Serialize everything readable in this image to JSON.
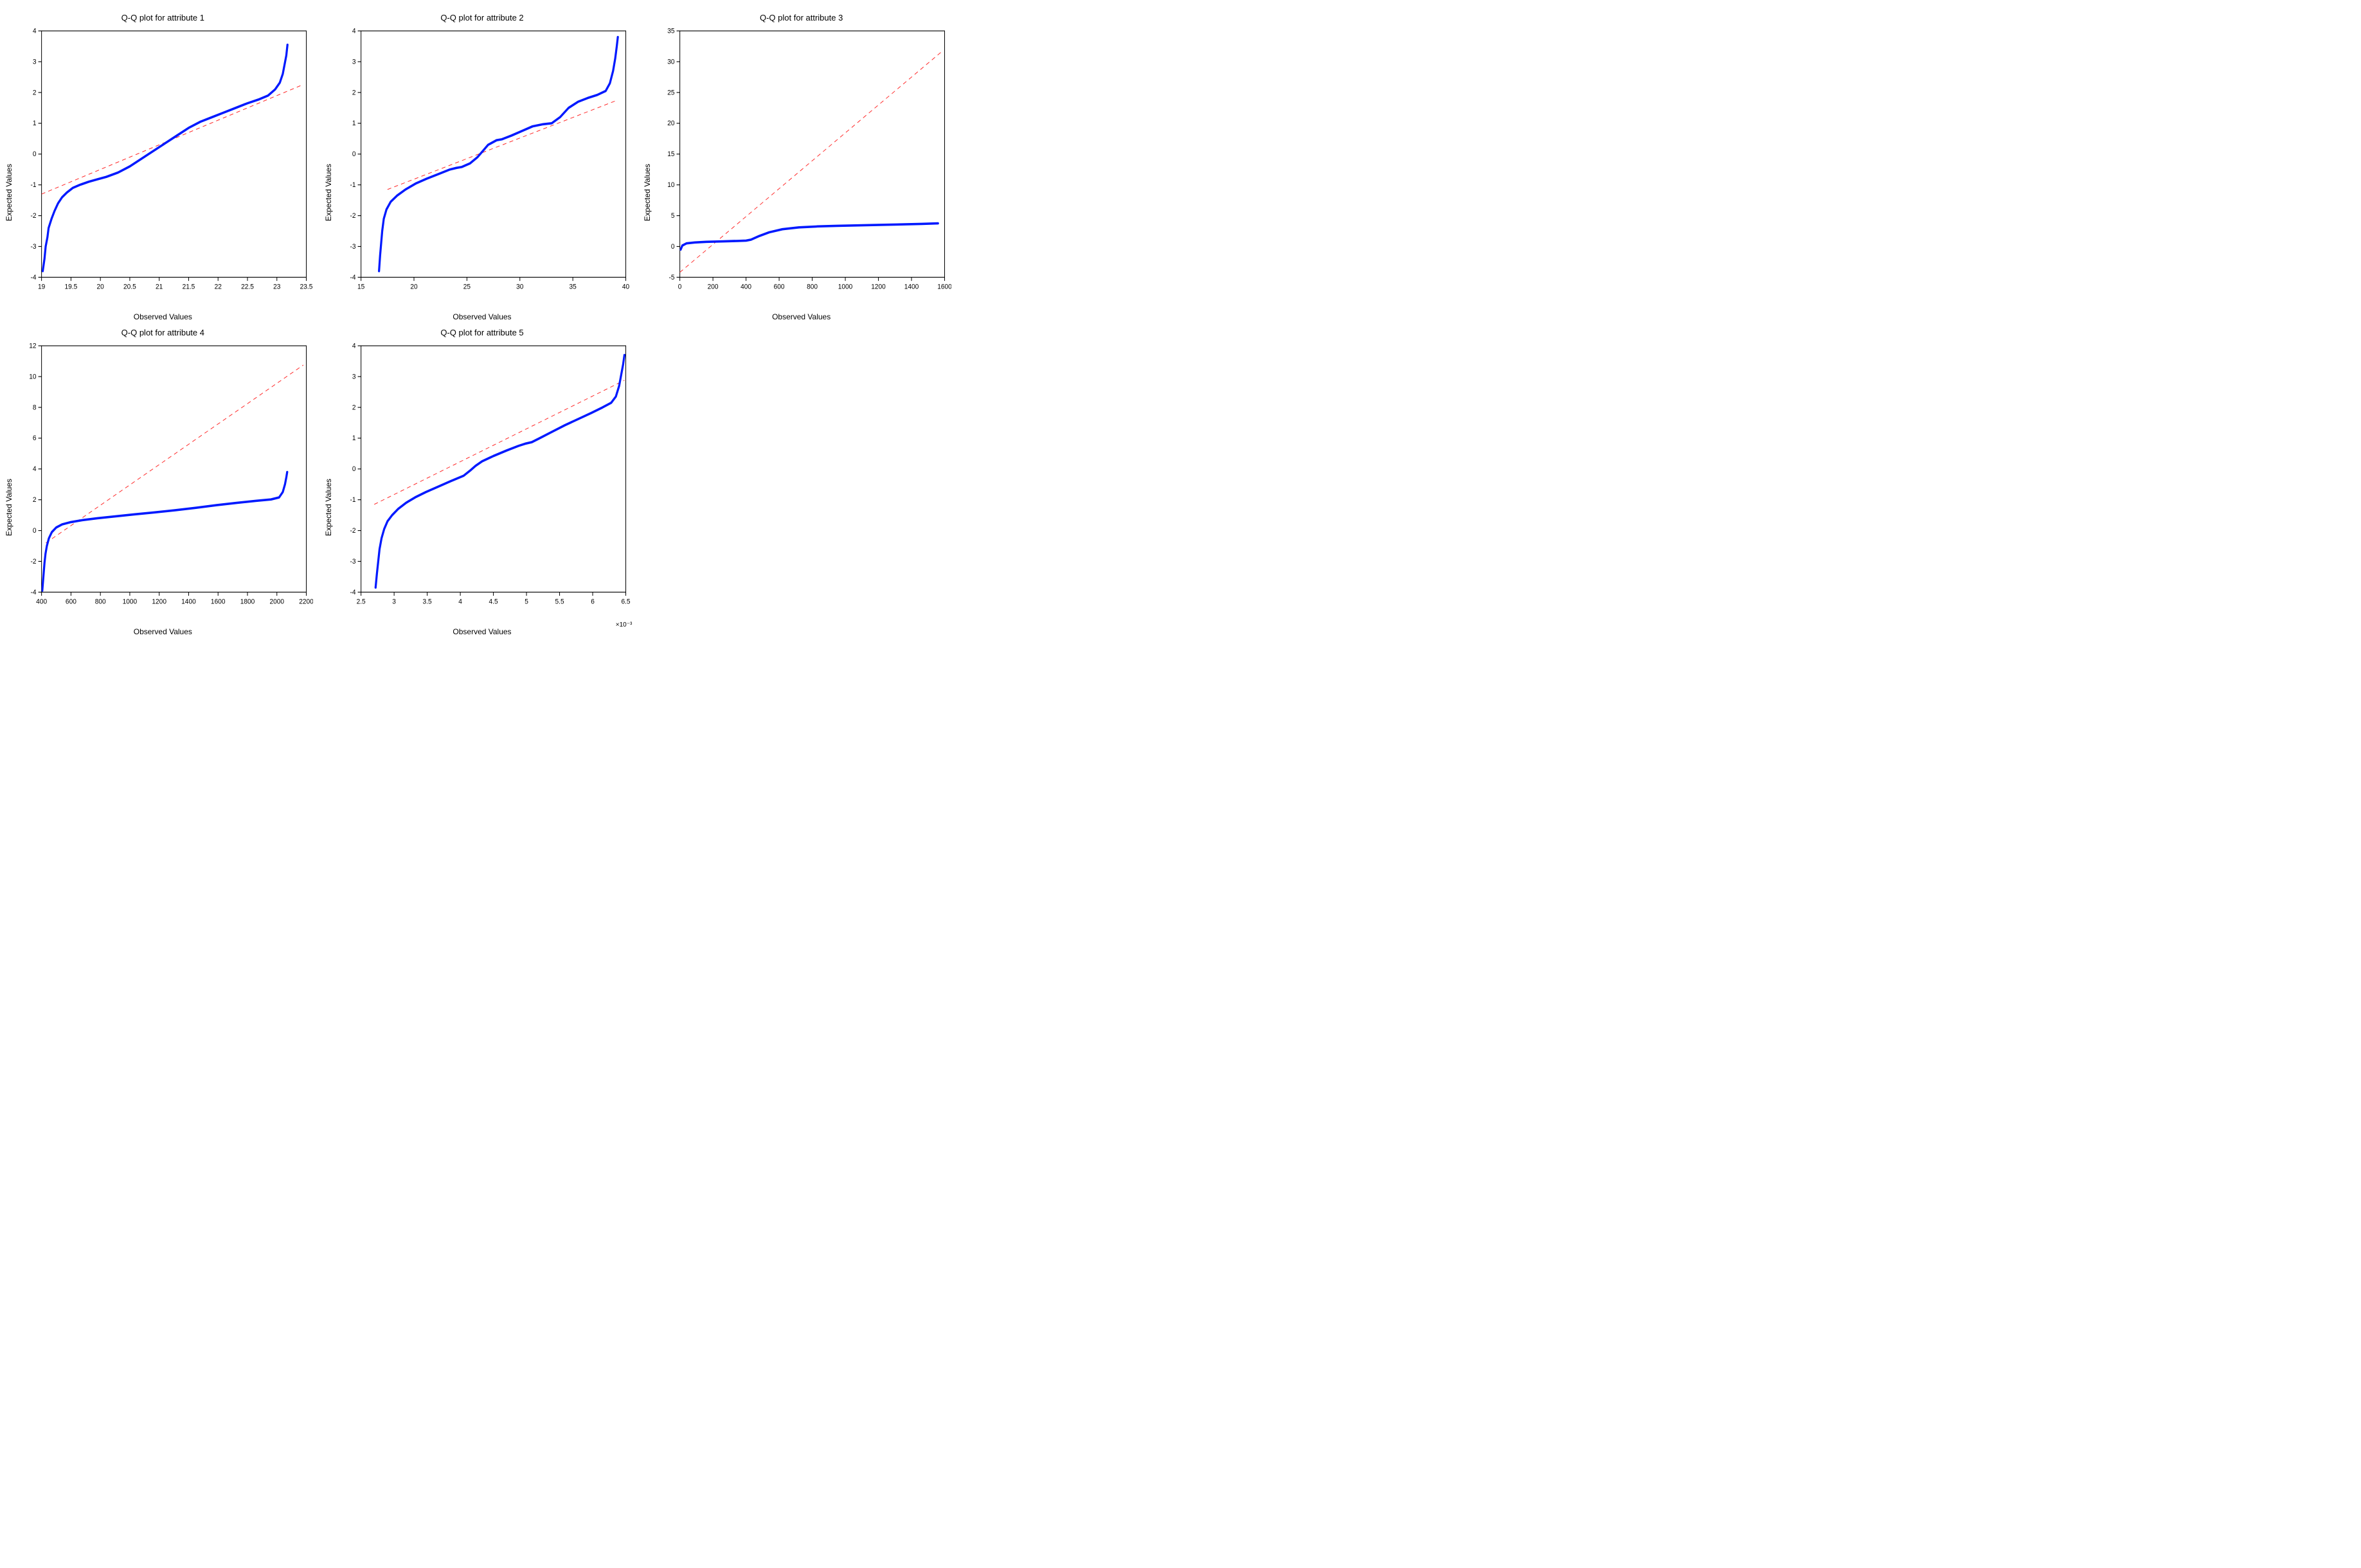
{
  "global": {
    "background_color": "#ffffff",
    "axis_color": "#000000",
    "data_color": "#0019ff",
    "ref_color": "#ff2a2a",
    "title_fontsize": 13,
    "label_fontsize": 12,
    "tick_fontsize": 10,
    "data_linewidth": 3.2,
    "ref_linewidth": 0.9,
    "ref_dash": "6 5",
    "font_family": "Arial, Helvetica, sans-serif"
  },
  "panels": [
    {
      "id": "attr1",
      "title": "Q-Q plot for attribute 1",
      "xlabel": "Observed Values",
      "ylabel": "Expected Values",
      "type": "qq-line",
      "xlim": [
        19,
        23.5
      ],
      "ylim": [
        -4,
        4
      ],
      "xticks": [
        19,
        19.5,
        20,
        20.5,
        21,
        21.5,
        22,
        22.5,
        23,
        23.5
      ],
      "yticks": [
        -4,
        -3,
        -2,
        -1,
        0,
        1,
        2,
        3,
        4
      ],
      "xtick_labels": [
        "19",
        "19.5",
        "20",
        "20.5",
        "21",
        "21.5",
        "22",
        "22.5",
        "23",
        "23.5"
      ],
      "ytick_labels": [
        "-4",
        "-3",
        "-2",
        "-1",
        "0",
        "1",
        "2",
        "3",
        "4"
      ],
      "data": [
        [
          19.02,
          -3.8
        ],
        [
          19.05,
          -3.4
        ],
        [
          19.07,
          -3.0
        ],
        [
          19.1,
          -2.7
        ],
        [
          19.12,
          -2.4
        ],
        [
          19.17,
          -2.1
        ],
        [
          19.22,
          -1.85
        ],
        [
          19.28,
          -1.6
        ],
        [
          19.35,
          -1.4
        ],
        [
          19.43,
          -1.25
        ],
        [
          19.53,
          -1.1
        ],
        [
          19.65,
          -1.0
        ],
        [
          19.8,
          -0.9
        ],
        [
          19.95,
          -0.82
        ],
        [
          20.1,
          -0.74
        ],
        [
          20.3,
          -0.6
        ],
        [
          20.5,
          -0.4
        ],
        [
          20.7,
          -0.15
        ],
        [
          20.9,
          0.1
        ],
        [
          21.1,
          0.35
        ],
        [
          21.3,
          0.6
        ],
        [
          21.5,
          0.85
        ],
        [
          21.7,
          1.05
        ],
        [
          21.9,
          1.2
        ],
        [
          22.1,
          1.35
        ],
        [
          22.3,
          1.5
        ],
        [
          22.5,
          1.65
        ],
        [
          22.7,
          1.78
        ],
        [
          22.85,
          1.9
        ],
        [
          22.97,
          2.1
        ],
        [
          23.05,
          2.32
        ],
        [
          23.1,
          2.6
        ],
        [
          23.13,
          2.9
        ],
        [
          23.16,
          3.2
        ],
        [
          23.18,
          3.55
        ]
      ],
      "ref_line": [
        [
          19.0,
          -1.3
        ],
        [
          23.4,
          2.22
        ]
      ]
    },
    {
      "id": "attr2",
      "title": "Q-Q plot for attribute 2",
      "xlabel": "Observed Values",
      "ylabel": "Expected Values",
      "type": "qq-line",
      "xlim": [
        15,
        40
      ],
      "ylim": [
        -4,
        4
      ],
      "xticks": [
        15,
        20,
        25,
        30,
        35,
        40
      ],
      "yticks": [
        -4,
        -3,
        -2,
        -1,
        0,
        1,
        2,
        3,
        4
      ],
      "xtick_labels": [
        "15",
        "20",
        "25",
        "30",
        "35",
        "40"
      ],
      "ytick_labels": [
        "-4",
        "-3",
        "-2",
        "-1",
        "0",
        "1",
        "2",
        "3",
        "4"
      ],
      "data": [
        [
          16.7,
          -3.8
        ],
        [
          16.8,
          -3.3
        ],
        [
          16.9,
          -2.9
        ],
        [
          17.0,
          -2.5
        ],
        [
          17.15,
          -2.1
        ],
        [
          17.4,
          -1.8
        ],
        [
          17.8,
          -1.55
        ],
        [
          18.4,
          -1.35
        ],
        [
          19.2,
          -1.15
        ],
        [
          20.2,
          -0.95
        ],
        [
          21.2,
          -0.8
        ],
        [
          22.3,
          -0.65
        ],
        [
          23.4,
          -0.5
        ],
        [
          24.0,
          -0.45
        ],
        [
          24.5,
          -0.42
        ],
        [
          25.3,
          -0.3
        ],
        [
          26.0,
          -0.1
        ],
        [
          26.5,
          0.1
        ],
        [
          27.0,
          0.3
        ],
        [
          27.8,
          0.45
        ],
        [
          28.3,
          0.48
        ],
        [
          28.6,
          0.52
        ],
        [
          29.2,
          0.6
        ],
        [
          30.2,
          0.75
        ],
        [
          31.2,
          0.9
        ],
        [
          32.2,
          0.97
        ],
        [
          33.0,
          1.0
        ],
        [
          33.8,
          1.2
        ],
        [
          34.6,
          1.5
        ],
        [
          35.5,
          1.7
        ],
        [
          36.4,
          1.82
        ],
        [
          37.3,
          1.92
        ],
        [
          38.1,
          2.05
        ],
        [
          38.5,
          2.3
        ],
        [
          38.8,
          2.7
        ],
        [
          39.0,
          3.1
        ],
        [
          39.15,
          3.5
        ],
        [
          39.25,
          3.8
        ]
      ],
      "ref_line": [
        [
          17.5,
          -1.15
        ],
        [
          39.2,
          1.75
        ]
      ]
    },
    {
      "id": "attr3",
      "title": "Q-Q plot for attribute 3",
      "xlabel": "Observed Values",
      "ylabel": "Expected Values",
      "type": "qq-line",
      "xlim": [
        0,
        1600
      ],
      "ylim": [
        -5,
        35
      ],
      "xticks": [
        0,
        200,
        400,
        600,
        800,
        1000,
        1200,
        1400,
        1600
      ],
      "yticks": [
        -5,
        0,
        5,
        10,
        15,
        20,
        25,
        30,
        35
      ],
      "xtick_labels": [
        "0",
        "200",
        "400",
        "600",
        "800",
        "1000",
        "1200",
        "1400",
        "1600"
      ],
      "ytick_labels": [
        "-5",
        "0",
        "5",
        "10",
        "15",
        "20",
        "25",
        "30",
        "35"
      ],
      "data": [
        [
          5,
          -0.5
        ],
        [
          15,
          0.15
        ],
        [
          40,
          0.5
        ],
        [
          90,
          0.65
        ],
        [
          160,
          0.75
        ],
        [
          250,
          0.82
        ],
        [
          350,
          0.9
        ],
        [
          400,
          0.95
        ],
        [
          430,
          1.1
        ],
        [
          480,
          1.7
        ],
        [
          540,
          2.3
        ],
        [
          620,
          2.8
        ],
        [
          720,
          3.1
        ],
        [
          830,
          3.25
        ],
        [
          950,
          3.35
        ],
        [
          1080,
          3.43
        ],
        [
          1210,
          3.5
        ],
        [
          1340,
          3.58
        ],
        [
          1460,
          3.66
        ],
        [
          1560,
          3.75
        ]
      ],
      "ref_line": [
        [
          0,
          -4.2
        ],
        [
          1590,
          31.8
        ]
      ]
    },
    {
      "id": "attr4",
      "title": "Q-Q plot for attribute 4",
      "xlabel": "Observed Values",
      "ylabel": "Expected Values",
      "type": "qq-line",
      "xlim": [
        400,
        2200
      ],
      "ylim": [
        -4,
        12
      ],
      "xticks": [
        400,
        600,
        800,
        1000,
        1200,
        1400,
        1600,
        1800,
        2000,
        2200
      ],
      "yticks": [
        -4,
        -2,
        0,
        2,
        4,
        6,
        8,
        10,
        12
      ],
      "xtick_labels": [
        "400",
        "600",
        "800",
        "1000",
        "1200",
        "1400",
        "1600",
        "1800",
        "2000",
        "2200"
      ],
      "ytick_labels": [
        "-4",
        "-2",
        "0",
        "2",
        "4",
        "6",
        "8",
        "10",
        "12"
      ],
      "data": [
        [
          405,
          -3.9
        ],
        [
          410,
          -3.3
        ],
        [
          415,
          -2.7
        ],
        [
          420,
          -2.1
        ],
        [
          427,
          -1.5
        ],
        [
          436,
          -1.0
        ],
        [
          450,
          -0.5
        ],
        [
          470,
          -0.1
        ],
        [
          500,
          0.2
        ],
        [
          540,
          0.4
        ],
        [
          600,
          0.55
        ],
        [
          680,
          0.68
        ],
        [
          780,
          0.8
        ],
        [
          900,
          0.92
        ],
        [
          1030,
          1.05
        ],
        [
          1170,
          1.18
        ],
        [
          1310,
          1.32
        ],
        [
          1450,
          1.48
        ],
        [
          1590,
          1.65
        ],
        [
          1730,
          1.8
        ],
        [
          1860,
          1.93
        ],
        [
          1960,
          2.02
        ],
        [
          2015,
          2.15
        ],
        [
          2040,
          2.5
        ],
        [
          2055,
          3.0
        ],
        [
          2065,
          3.5
        ],
        [
          2070,
          3.8
        ]
      ],
      "ref_line": [
        [
          430,
          -0.8
        ],
        [
          2180,
          10.75
        ]
      ]
    },
    {
      "id": "attr5",
      "title": "Q-Q plot for attribute 5",
      "xlabel": "Observed Values",
      "ylabel": "Expected Values",
      "type": "qq-line",
      "xlim": [
        2.5,
        6.5
      ],
      "ylim": [
        -4,
        4
      ],
      "xticks": [
        2.5,
        3,
        3.5,
        4,
        4.5,
        5,
        5.5,
        6,
        6.5
      ],
      "yticks": [
        -4,
        -3,
        -2,
        -1,
        0,
        1,
        2,
        3,
        4
      ],
      "xtick_labels": [
        "2.5",
        "3",
        "3.5",
        "4",
        "4.5",
        "5",
        "5.5",
        "6",
        "6.5"
      ],
      "ytick_labels": [
        "-4",
        "-3",
        "-2",
        "-1",
        "0",
        "1",
        "2",
        "3",
        "4"
      ],
      "x_exponent": "×10⁻³",
      "data": [
        [
          2.72,
          -3.85
        ],
        [
          2.74,
          -3.4
        ],
        [
          2.76,
          -3.0
        ],
        [
          2.78,
          -2.6
        ],
        [
          2.81,
          -2.25
        ],
        [
          2.85,
          -1.95
        ],
        [
          2.9,
          -1.7
        ],
        [
          2.97,
          -1.5
        ],
        [
          3.06,
          -1.3
        ],
        [
          3.18,
          -1.1
        ],
        [
          3.32,
          -0.92
        ],
        [
          3.48,
          -0.75
        ],
        [
          3.66,
          -0.58
        ],
        [
          3.85,
          -0.4
        ],
        [
          4.05,
          -0.22
        ],
        [
          4.15,
          -0.05
        ],
        [
          4.23,
          0.1
        ],
        [
          4.33,
          0.25
        ],
        [
          4.5,
          0.42
        ],
        [
          4.7,
          0.6
        ],
        [
          4.88,
          0.75
        ],
        [
          4.98,
          0.82
        ],
        [
          5.08,
          0.87
        ],
        [
          5.2,
          1.0
        ],
        [
          5.38,
          1.2
        ],
        [
          5.58,
          1.42
        ],
        [
          5.78,
          1.62
        ],
        [
          5.98,
          1.82
        ],
        [
          6.15,
          2.0
        ],
        [
          6.28,
          2.15
        ],
        [
          6.35,
          2.35
        ],
        [
          6.4,
          2.7
        ],
        [
          6.43,
          3.05
        ],
        [
          6.46,
          3.4
        ],
        [
          6.48,
          3.7
        ]
      ],
      "ref_line": [
        [
          2.7,
          -1.15
        ],
        [
          6.48,
          2.88
        ]
      ]
    }
  ]
}
